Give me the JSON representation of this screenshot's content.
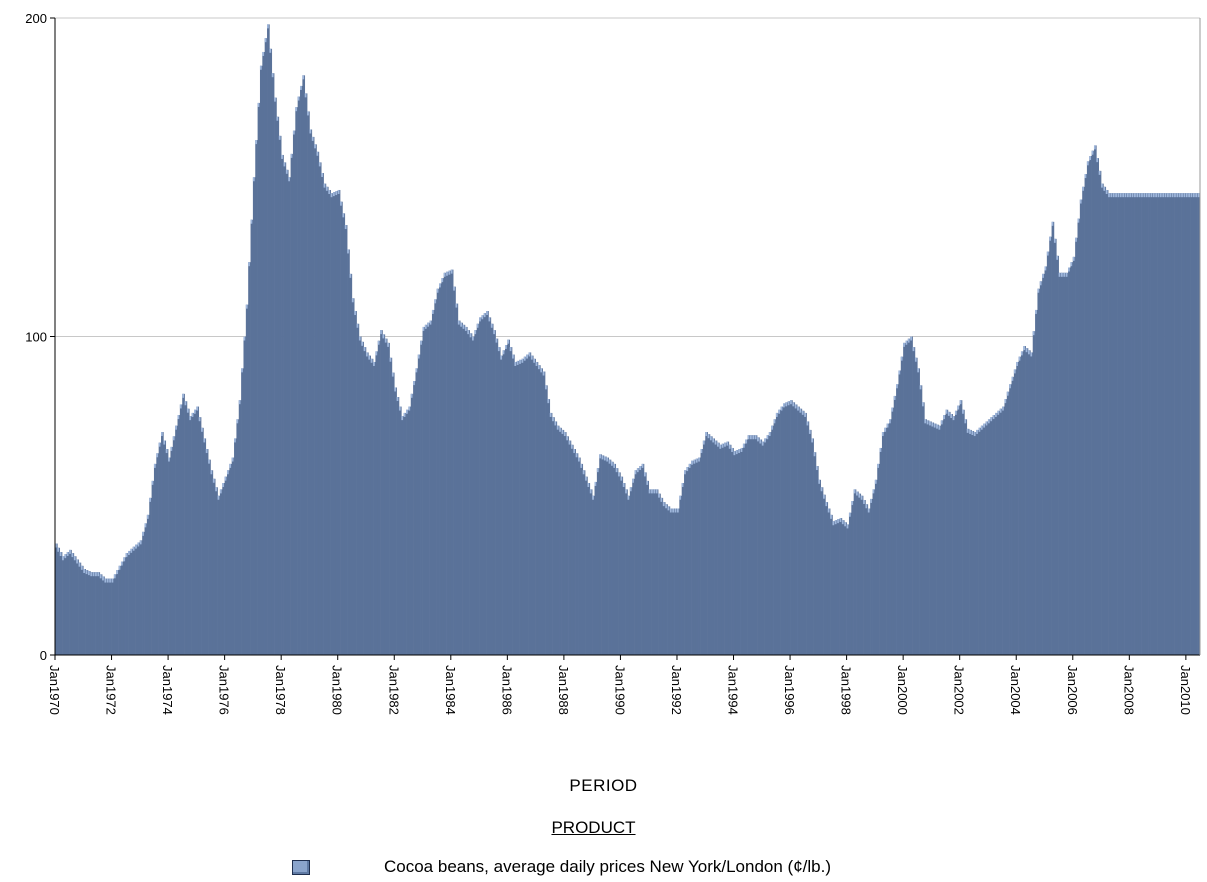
{
  "chart_data": {
    "type": "bar",
    "title": "",
    "xlabel": "PERIOD",
    "ylabel": "",
    "ylim": [
      0,
      200
    ],
    "yticks": [
      "0",
      "100",
      "200"
    ],
    "xlim": [
      "Jan1970",
      "Jul2010"
    ],
    "xticks": [
      "Jan1970",
      "Jan1972",
      "Jan1974",
      "Jan1976",
      "Jan1978",
      "Jan1980",
      "Jan1982",
      "Jan1984",
      "Jan1986",
      "Jan1988",
      "Jan1990",
      "Jan1992",
      "Jan1994",
      "Jan1996",
      "Jan1998",
      "Jan2000",
      "Jan2002",
      "Jan2004",
      "Jan2006",
      "Jan2008",
      "Jan2010"
    ],
    "grid": true,
    "legend_position": "bottom",
    "legend_title": "PRODUCT",
    "series": [
      {
        "name": "Cocoa beans, average daily prices New York/London (¢/lb.)",
        "color": "#5a7299",
        "highlight_color": "#9fb7dc",
        "points": [
          [
            "Jan1970",
            35
          ],
          [
            "Apr1970",
            31
          ],
          [
            "Jul1970",
            33
          ],
          [
            "Oct1970",
            30
          ],
          [
            "Jan1971",
            27
          ],
          [
            "Apr1971",
            26
          ],
          [
            "Jul1971",
            26
          ],
          [
            "Oct1971",
            24
          ],
          [
            "Jan1972",
            24
          ],
          [
            "Apr1972",
            28
          ],
          [
            "Jul1972",
            32
          ],
          [
            "Oct1972",
            34
          ],
          [
            "Jan1973",
            36
          ],
          [
            "Apr1973",
            44
          ],
          [
            "Jul1973",
            60
          ],
          [
            "Oct1973",
            70
          ],
          [
            "Jan1974",
            62
          ],
          [
            "Apr1974",
            72
          ],
          [
            "Jul1974",
            82
          ],
          [
            "Oct1974",
            75
          ],
          [
            "Jan1975",
            78
          ],
          [
            "Apr1975",
            68
          ],
          [
            "Jul1975",
            58
          ],
          [
            "Oct1975",
            50
          ],
          [
            "Jan1976",
            56
          ],
          [
            "Apr1976",
            62
          ],
          [
            "Jul1976",
            80
          ],
          [
            "Oct1976",
            110
          ],
          [
            "Jan1977",
            150
          ],
          [
            "Apr1977",
            185
          ],
          [
            "Jul1977",
            198
          ],
          [
            "Oct1977",
            175
          ],
          [
            "Jan1978",
            157
          ],
          [
            "Apr1978",
            150
          ],
          [
            "Jul1978",
            172
          ],
          [
            "Oct1978",
            182
          ],
          [
            "Jan1979",
            165
          ],
          [
            "Apr1979",
            158
          ],
          [
            "Jul1979",
            148
          ],
          [
            "Oct1979",
            145
          ],
          [
            "Jan1980",
            146
          ],
          [
            "Apr1980",
            135
          ],
          [
            "Jul1980",
            112
          ],
          [
            "Oct1980",
            100
          ],
          [
            "Jan1981",
            95
          ],
          [
            "Apr1981",
            92
          ],
          [
            "Jul1981",
            102
          ],
          [
            "Oct1981",
            98
          ],
          [
            "Jan1982",
            84
          ],
          [
            "Apr1982",
            75
          ],
          [
            "Jul1982",
            78
          ],
          [
            "Oct1982",
            90
          ],
          [
            "Jan1983",
            103
          ],
          [
            "Apr1983",
            105
          ],
          [
            "Jul1983",
            115
          ],
          [
            "Oct1983",
            120
          ],
          [
            "Jan1984",
            121
          ],
          [
            "Apr1984",
            105
          ],
          [
            "Jul1984",
            103
          ],
          [
            "Oct1984",
            100
          ],
          [
            "Jan1985",
            106
          ],
          [
            "Apr1985",
            108
          ],
          [
            "Jul1985",
            102
          ],
          [
            "Oct1985",
            94
          ],
          [
            "Jan1986",
            99
          ],
          [
            "Apr1986",
            92
          ],
          [
            "Jul1986",
            93
          ],
          [
            "Oct1986",
            95
          ],
          [
            "Jan1987",
            92
          ],
          [
            "Apr1987",
            89
          ],
          [
            "Jul1987",
            76
          ],
          [
            "Oct1987",
            72
          ],
          [
            "Jan1988",
            70
          ],
          [
            "Apr1988",
            66
          ],
          [
            "Jul1988",
            62
          ],
          [
            "Oct1988",
            56
          ],
          [
            "Jan1989",
            50
          ],
          [
            "Apr1989",
            63
          ],
          [
            "Jul1989",
            62
          ],
          [
            "Oct1989",
            60
          ],
          [
            "Jan1990",
            56
          ],
          [
            "Apr1990",
            50
          ],
          [
            "Jul1990",
            58
          ],
          [
            "Oct1990",
            60
          ],
          [
            "Jan1991",
            52
          ],
          [
            "Apr1991",
            52
          ],
          [
            "Jul1991",
            48
          ],
          [
            "Oct1991",
            46
          ],
          [
            "Jan1992",
            46
          ],
          [
            "Apr1992",
            58
          ],
          [
            "Jul1992",
            61
          ],
          [
            "Oct1992",
            62
          ],
          [
            "Jan1993",
            70
          ],
          [
            "Apr1993",
            68
          ],
          [
            "Jul1993",
            66
          ],
          [
            "Oct1993",
            67
          ],
          [
            "Jan1994",
            64
          ],
          [
            "Apr1994",
            65
          ],
          [
            "Jul1994",
            69
          ],
          [
            "Oct1994",
            69
          ],
          [
            "Jan1995",
            67
          ],
          [
            "Apr1995",
            70
          ],
          [
            "Jul1995",
            76
          ],
          [
            "Oct1995",
            79
          ],
          [
            "Jan1996",
            80
          ],
          [
            "Apr1996",
            78
          ],
          [
            "Jul1996",
            76
          ],
          [
            "Oct1996",
            68
          ],
          [
            "Jan1997",
            55
          ],
          [
            "Apr1997",
            48
          ],
          [
            "Jul1997",
            42
          ],
          [
            "Oct1997",
            43
          ],
          [
            "Jan1998",
            41
          ],
          [
            "Apr1998",
            52
          ],
          [
            "Jul1998",
            50
          ],
          [
            "Oct1998",
            46
          ],
          [
            "Jan1999",
            55
          ],
          [
            "Apr1999",
            70
          ],
          [
            "Jul1999",
            74
          ],
          [
            "Oct1999",
            85
          ],
          [
            "Jan2000",
            98
          ],
          [
            "Apr2000",
            100
          ],
          [
            "Jul2000",
            90
          ],
          [
            "Oct2000",
            74
          ],
          [
            "Jan2001",
            73
          ],
          [
            "Apr2001",
            72
          ],
          [
            "Jul2001",
            77
          ],
          [
            "Oct2001",
            75
          ],
          [
            "Jan2002",
            80
          ],
          [
            "Apr2002",
            71
          ],
          [
            "Jul2002",
            70
          ],
          [
            "Oct2002",
            72
          ],
          [
            "Jan2003",
            74
          ],
          [
            "Apr2003",
            76
          ],
          [
            "Jul2003",
            78
          ],
          [
            "Oct2003",
            85
          ],
          [
            "Jan2004",
            92
          ],
          [
            "Apr2004",
            97
          ],
          [
            "Jul2004",
            95
          ],
          [
            "Oct2004",
            115
          ],
          [
            "Jan2005",
            122
          ],
          [
            "Apr2005",
            136
          ],
          [
            "Jul2005",
            120
          ],
          [
            "Oct2005",
            120
          ],
          [
            "Jan2006",
            125
          ],
          [
            "Apr2006",
            143
          ],
          [
            "Jul2006",
            155
          ],
          [
            "Oct2006",
            160
          ],
          [
            "Jan2007",
            148
          ],
          [
            "Apr2007",
            145
          ]
        ]
      }
    ]
  }
}
